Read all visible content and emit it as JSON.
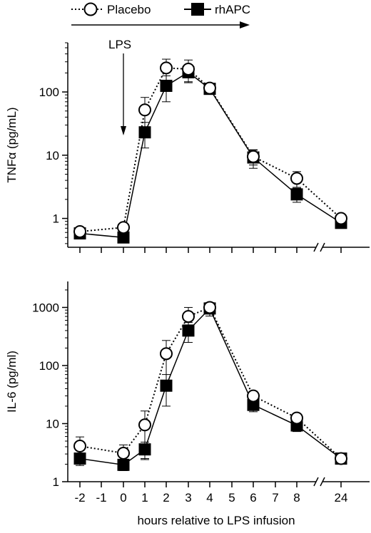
{
  "legend": {
    "placebo_label": "Placebo",
    "rhapc_label": "rhAPC"
  },
  "annotation": {
    "lps_label": "LPS"
  },
  "x_axis": {
    "label": "hours relative to LPS infusion",
    "ticks": [
      {
        "value": -2,
        "label": "-2"
      },
      {
        "value": -1,
        "label": "-1"
      },
      {
        "value": 0,
        "label": "0"
      },
      {
        "value": 1,
        "label": "1"
      },
      {
        "value": 2,
        "label": "2"
      },
      {
        "value": 3,
        "label": "3"
      },
      {
        "value": 4,
        "label": "4"
      },
      {
        "value": 5,
        "label": "5"
      },
      {
        "value": 6,
        "label": "6"
      },
      {
        "value": 7,
        "label": "7"
      },
      {
        "value": 8,
        "label": "8"
      },
      {
        "value": 24,
        "label": "24"
      }
    ],
    "break_between": [
      8,
      24
    ]
  },
  "chart_data": [
    {
      "type": "line",
      "ylabel": "TNFα (pg/mL)",
      "yscale": "log",
      "ylim": [
        0.35,
        600
      ],
      "yticks": [
        {
          "value": 1,
          "label": "1"
        },
        {
          "value": 10,
          "label": "10"
        },
        {
          "value": 100,
          "label": "100"
        }
      ],
      "x": [
        -2,
        0,
        1,
        2,
        3,
        4,
        6,
        8,
        24
      ],
      "series": [
        {
          "name": "Placebo",
          "marker": "open-circle",
          "line": "dotted",
          "values": [
            0.62,
            0.72,
            52,
            240,
            230,
            115,
            9.5,
            4.3,
            1.0
          ],
          "error": [
            0.05,
            0.05,
            30,
            90,
            90,
            15,
            2.5,
            1.2,
            0.1
          ]
        },
        {
          "name": "rhAPC",
          "marker": "filled-square",
          "line": "solid",
          "values": [
            0.58,
            0.5,
            23,
            125,
            205,
            112,
            9.2,
            2.4,
            0.85
          ],
          "error": [
            0.05,
            0.05,
            10,
            55,
            60,
            15,
            3,
            0.6,
            0.1
          ]
        }
      ]
    },
    {
      "type": "line",
      "ylabel": "IL-6 (pg/ml)",
      "yscale": "log",
      "ylim": [
        1,
        2800
      ],
      "yticks": [
        {
          "value": 1,
          "label": "1"
        },
        {
          "value": 10,
          "label": "10"
        },
        {
          "value": 100,
          "label": "100"
        },
        {
          "value": 1000,
          "label": "1000"
        }
      ],
      "x": [
        -2,
        0,
        1,
        2,
        3,
        4,
        6,
        8,
        24
      ],
      "series": [
        {
          "name": "Placebo",
          "marker": "open-circle",
          "line": "dotted",
          "values": [
            4.1,
            3.1,
            9.5,
            160,
            700,
            1000,
            30,
            12.5,
            2.5
          ],
          "error": [
            1.8,
            1.2,
            7,
            110,
            300,
            200,
            6,
            2,
            0.4
          ]
        },
        {
          "name": "rhAPC",
          "marker": "filled-square",
          "line": "solid",
          "values": [
            2.5,
            1.95,
            3.6,
            45,
            400,
            960,
            21,
            9.3,
            2.5
          ],
          "error": [
            0.6,
            0.4,
            1.2,
            25,
            150,
            250,
            5,
            2,
            0.4
          ]
        }
      ]
    }
  ]
}
